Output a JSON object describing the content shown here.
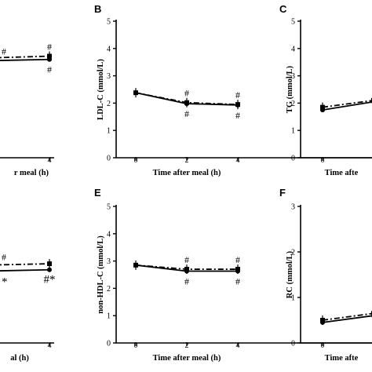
{
  "chart_data": [
    {
      "panel": "A",
      "type": "line",
      "show_letter": false,
      "ylabel": "",
      "xlabel": "r meal (h)",
      "x": [
        0,
        2,
        4
      ],
      "xticks": [
        "4"
      ],
      "yticks": [],
      "ylim": [
        0,
        5
      ],
      "series": [
        {
          "style": "solid",
          "values": [
            3.5,
            3.55,
            3.6
          ]
        },
        {
          "style": "dashdot",
          "values": [
            3.55,
            3.65,
            3.72
          ]
        }
      ],
      "annotations": [
        {
          "x": 0,
          "side": "above",
          "text": "#"
        },
        {
          "x": 4,
          "side": "above",
          "text": "#"
        },
        {
          "x": 4,
          "side": "below",
          "text": "#"
        }
      ]
    },
    {
      "panel": "B",
      "type": "line",
      "show_letter": true,
      "ylabel": "LDL-C (mmol/L)",
      "xlabel": "Time after meal (h)",
      "x": [
        0,
        2,
        4
      ],
      "xticks": [
        "0",
        "2",
        "4"
      ],
      "yticks": [
        "0",
        "1",
        "2",
        "3",
        "4",
        "5"
      ],
      "ylim": [
        0,
        5
      ],
      "series": [
        {
          "style": "solid",
          "values": [
            2.38,
            1.98,
            1.93
          ]
        },
        {
          "style": "dashdot",
          "values": [
            2.38,
            2.02,
            1.95
          ]
        }
      ],
      "annotations": [
        {
          "x": 2,
          "side": "above",
          "text": "#"
        },
        {
          "x": 2,
          "side": "below",
          "text": "#"
        },
        {
          "x": 4,
          "side": "above",
          "text": "#"
        },
        {
          "x": 4,
          "side": "below",
          "text": "#"
        }
      ]
    },
    {
      "panel": "C",
      "type": "line",
      "show_letter": true,
      "ylabel": "TG (mmol/L)",
      "xlabel": "Time afte",
      "x": [
        0,
        2,
        4
      ],
      "xticks": [
        "0"
      ],
      "yticks": [
        "0",
        "1",
        "2",
        "3",
        "4",
        "5"
      ],
      "ylim": [
        0,
        5
      ],
      "series": [
        {
          "style": "solid",
          "values": [
            1.75,
            2.05,
            2.3
          ]
        },
        {
          "style": "dashdot",
          "values": [
            1.85,
            2.1,
            2.35
          ]
        }
      ],
      "annotations": []
    },
    {
      "panel": "D",
      "type": "line",
      "show_letter": false,
      "ylabel": "",
      "xlabel": "al (h)",
      "x": [
        0,
        2,
        4
      ],
      "xticks": [
        "4"
      ],
      "yticks": [],
      "ylim": [
        0,
        5
      ],
      "series": [
        {
          "style": "solid",
          "values": [
            2.6,
            2.63,
            2.68
          ]
        },
        {
          "style": "dashdot",
          "values": [
            2.8,
            2.85,
            2.9
          ]
        }
      ],
      "annotations": [
        {
          "x": 0,
          "side": "above",
          "text": "#"
        },
        {
          "x": 0,
          "side": "below",
          "text": "*"
        },
        {
          "x": 4,
          "side": "below",
          "text": "#*"
        }
      ]
    },
    {
      "panel": "E",
      "type": "line",
      "show_letter": true,
      "ylabel": "non-HDL-C (mmol/L)",
      "xlabel": "Time after meal (h)",
      "x": [
        0,
        2,
        4
      ],
      "xticks": [
        "0",
        "2",
        "4"
      ],
      "yticks": [
        "0",
        "1",
        "2",
        "3",
        "4",
        "5"
      ],
      "ylim": [
        0,
        5
      ],
      "series": [
        {
          "style": "solid",
          "values": [
            2.85,
            2.63,
            2.63
          ]
        },
        {
          "style": "dashdot",
          "values": [
            2.85,
            2.7,
            2.7
          ]
        }
      ],
      "annotations": [
        {
          "x": 2,
          "side": "above",
          "text": "#"
        },
        {
          "x": 2,
          "side": "below",
          "text": "#"
        },
        {
          "x": 4,
          "side": "above",
          "text": "#"
        },
        {
          "x": 4,
          "side": "below",
          "text": "#"
        }
      ]
    },
    {
      "panel": "F",
      "type": "line",
      "show_letter": true,
      "ylabel": "RC (mmol/L)",
      "xlabel": "Time afte",
      "x": [
        0,
        2,
        4
      ],
      "xticks": [
        "0"
      ],
      "yticks": [
        "0",
        "1",
        "2",
        "3"
      ],
      "ylim": [
        0,
        3
      ],
      "series": [
        {
          "style": "solid",
          "values": [
            0.45,
            0.6,
            0.8
          ]
        },
        {
          "style": "dashdot",
          "values": [
            0.5,
            0.65,
            0.85
          ]
        }
      ],
      "annotations": []
    }
  ]
}
